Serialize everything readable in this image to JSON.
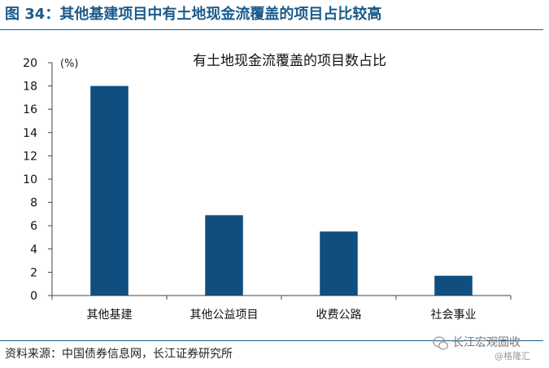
{
  "figure": {
    "title": "图 34：其他基建项目中有土地现金流覆盖的项目占比较高",
    "source": "资料来源：中国债券信息网，长江证券研究所"
  },
  "watermark": {
    "name": "长江宏观固收",
    "sub": "@格隆汇",
    "icon": "wechat-icon"
  },
  "colors": {
    "bar": "#0f4e7f",
    "title": "#1a5a8a",
    "axis": "#444444"
  },
  "chart_data": {
    "type": "bar",
    "title": "有土地现金流覆盖的项目数占比",
    "unit_label": "(%)",
    "categories": [
      "其他基建",
      "其他公益项目",
      "收费公路",
      "社会事业"
    ],
    "values": [
      18.0,
      6.9,
      5.5,
      1.7
    ],
    "ylim": [
      0,
      20
    ],
    "yticks": [
      "0",
      "2",
      "4",
      "6",
      "8",
      "10",
      "12",
      "14",
      "16",
      "18",
      "20"
    ],
    "xlabel": "",
    "ylabel": "",
    "grid": false,
    "legend": "none"
  }
}
